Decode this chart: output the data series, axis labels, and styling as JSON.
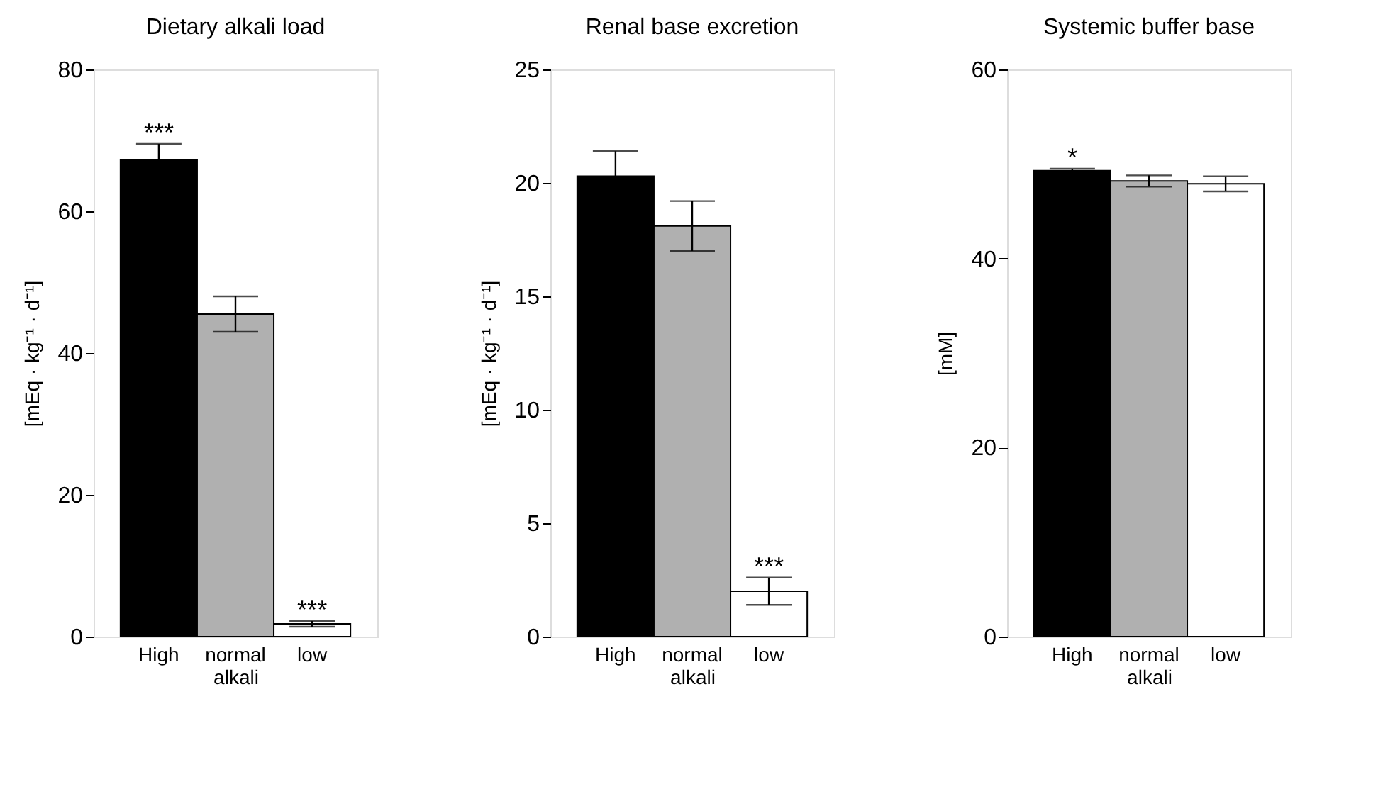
{
  "chart_data": [
    {
      "type": "bar",
      "title": "Dietary alkali load",
      "xlabel": "alkali",
      "ylabel": "[mEq · kg⁻¹ · d⁻¹]",
      "categories": [
        "High",
        "normal",
        "low"
      ],
      "values": [
        67.3,
        45.5,
        1.8
      ],
      "errors": [
        2.2,
        2.5,
        0.4
      ],
      "colors": [
        "#000000",
        "#b0b0b0",
        "#ffffff"
      ],
      "ylim": [
        0,
        80
      ],
      "yticks": [
        0,
        20,
        40,
        60,
        80
      ],
      "annotations": [
        {
          "text": "***",
          "x": "High",
          "y": 69.5
        },
        {
          "text": "***",
          "x": "low",
          "y": 2.2
        }
      ]
    },
    {
      "type": "bar",
      "title": "Renal base excretion",
      "xlabel": "alkali",
      "ylabel": "[mEq · kg⁻¹ · d⁻¹]",
      "categories": [
        "High",
        "normal",
        "low"
      ],
      "values": [
        20.3,
        18.1,
        2.0
      ],
      "errors": [
        1.1,
        1.1,
        0.6
      ],
      "colors": [
        "#000000",
        "#b0b0b0",
        "#ffffff"
      ],
      "ylim": [
        0,
        25
      ],
      "yticks": [
        0,
        5,
        10,
        15,
        20,
        25
      ],
      "annotations": [
        {
          "text": "***",
          "x": "low",
          "y": 2.6
        }
      ]
    },
    {
      "type": "bar",
      "title": "Systemic buffer base",
      "xlabel": "alkali",
      "ylabel": "[mM]",
      "categories": [
        "High",
        "normal",
        "low"
      ],
      "values": [
        49.3,
        48.2,
        47.9
      ],
      "errors": [
        0.2,
        0.6,
        0.8
      ],
      "colors": [
        "#000000",
        "#b0b0b0",
        "#ffffff"
      ],
      "ylim": [
        0,
        60
      ],
      "yticks": [
        0,
        20,
        40,
        60
      ],
      "annotations": [
        {
          "text": "*",
          "x": "High",
          "y": 49.5
        }
      ]
    }
  ]
}
